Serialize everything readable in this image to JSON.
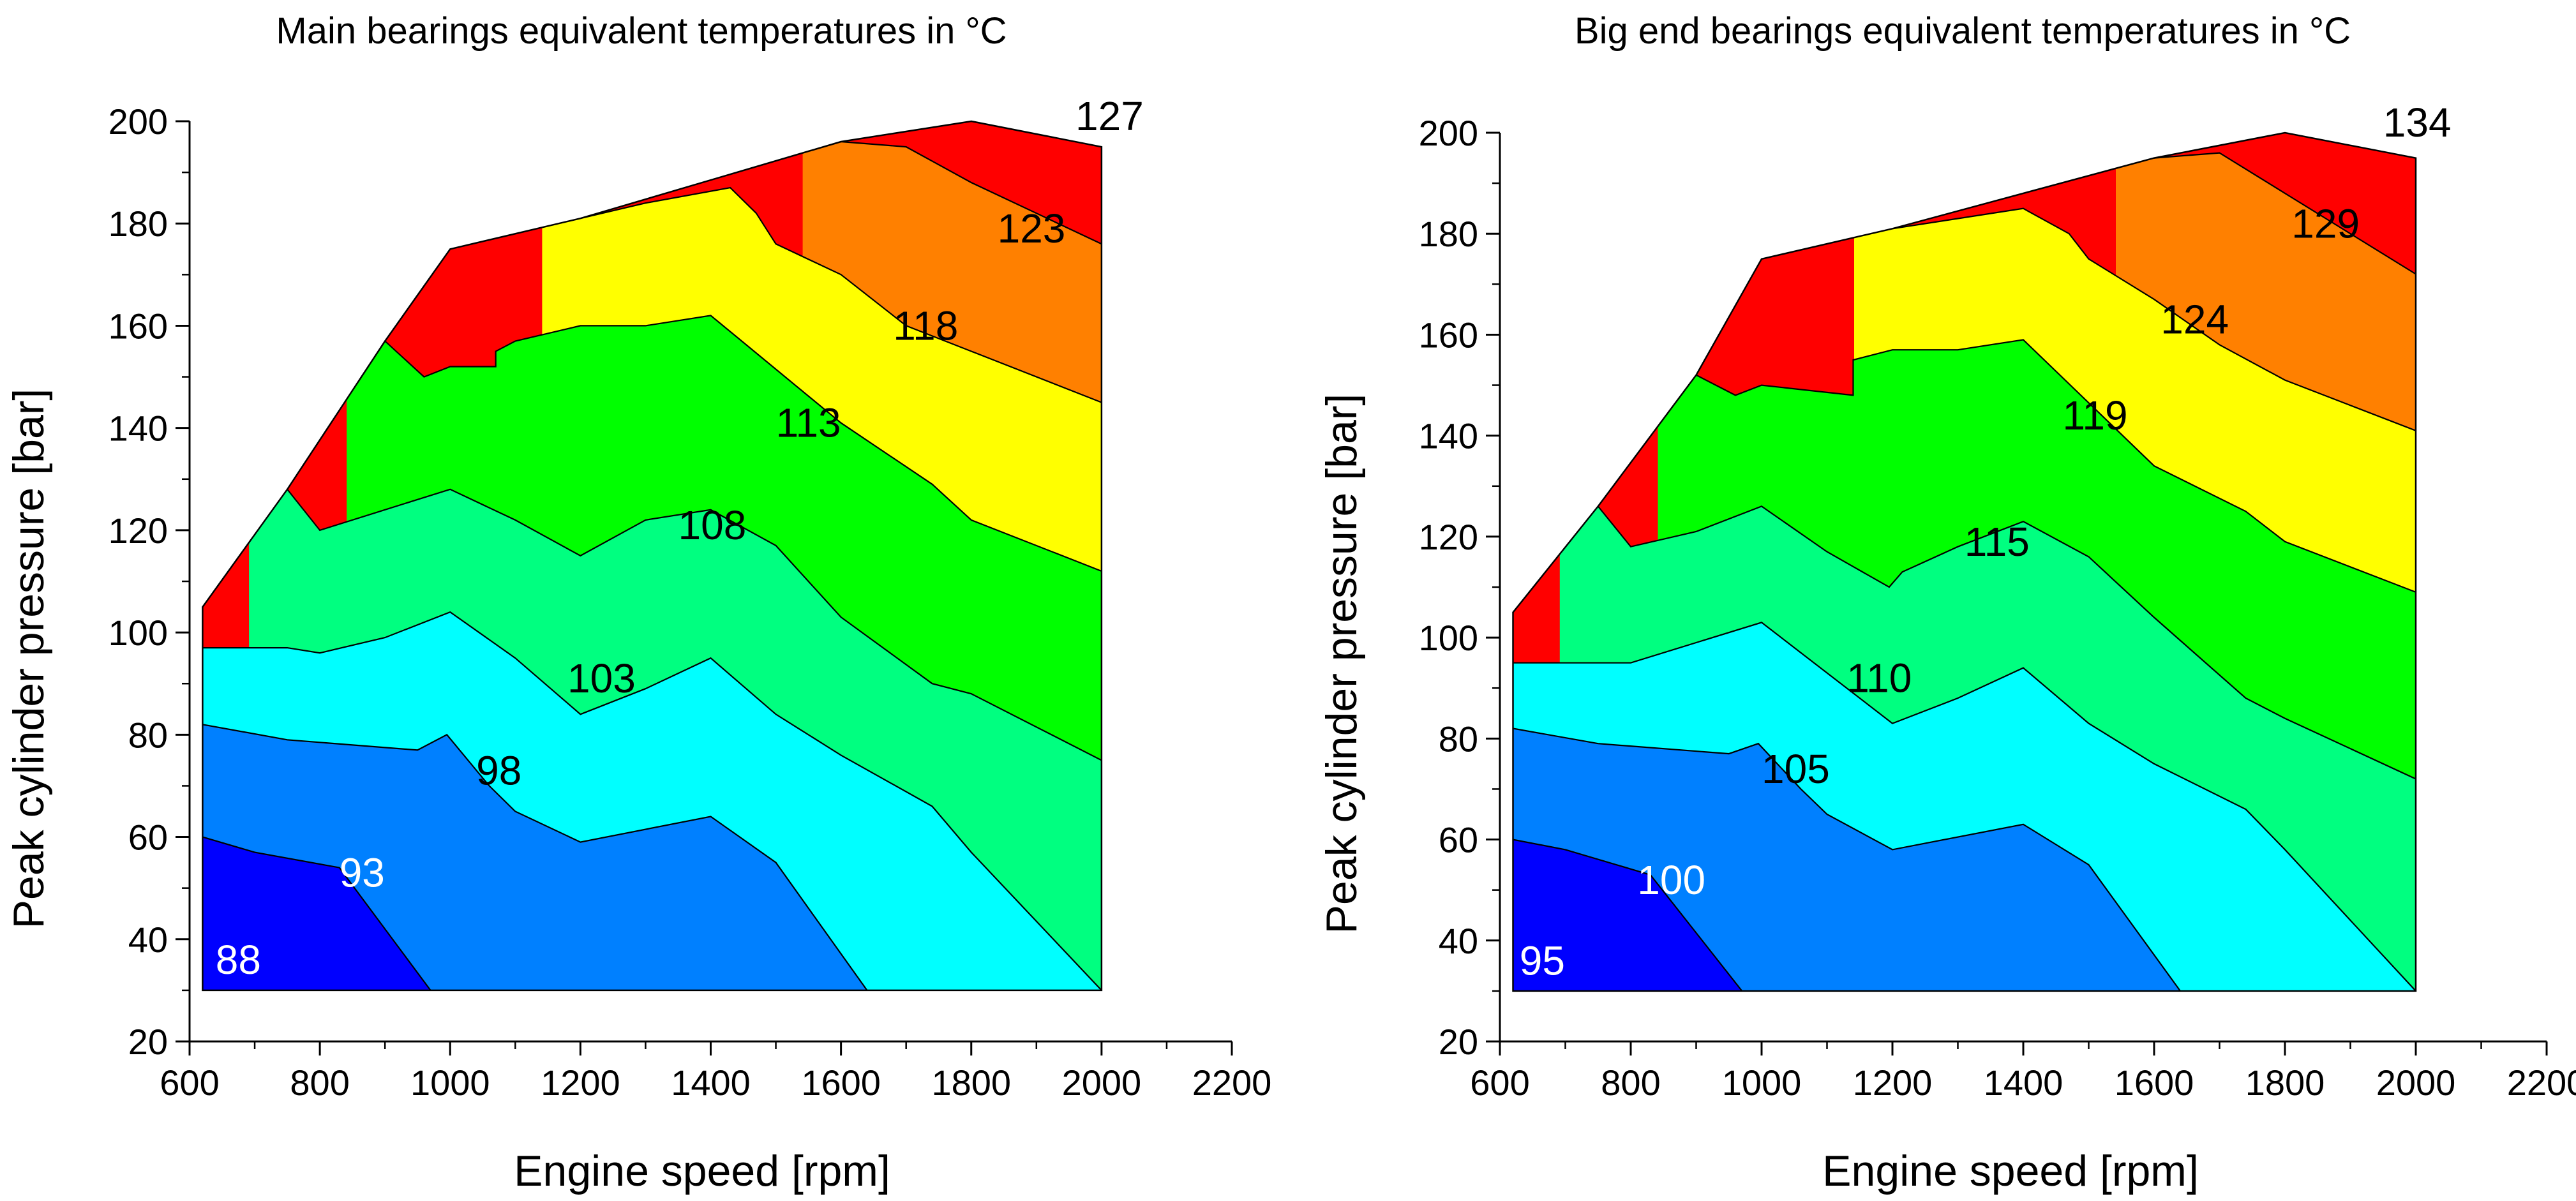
{
  "chart_data": [
    {
      "type": "contour",
      "title": "Main bearings equivalent temperatures in °C",
      "xlabel": "Engine speed [rpm]",
      "ylabel": "Peak cylinder pressure [bar]",
      "xlim": [
        600,
        2200
      ],
      "ylim": [
        20,
        200
      ],
      "xticks": [
        600,
        800,
        1000,
        1200,
        1400,
        1600,
        1800,
        2000,
        2200
      ],
      "yticks": [
        20,
        40,
        60,
        80,
        100,
        120,
        140,
        160,
        180,
        200
      ],
      "grid": false,
      "legend": "none",
      "colors": [
        "#0000ff",
        "#0080ff",
        "#00ffff",
        "#00ff80",
        "#00ff00",
        "#ffff00",
        "#ff8000",
        "#ff0000"
      ],
      "boundary": [
        [
          620,
          30
        ],
        [
          620,
          105
        ],
        [
          750,
          128
        ],
        [
          900,
          157
        ],
        [
          1000,
          175
        ],
        [
          1200,
          181
        ],
        [
          1600,
          196
        ],
        [
          1800,
          200
        ],
        [
          2000,
          195
        ],
        [
          2000,
          30
        ]
      ],
      "contour_lines": [
        {
          "level": 88,
          "points": [
            [
              620,
              60
            ],
            [
              700,
              57
            ],
            [
              830,
              54
            ],
            [
              970,
              30
            ]
          ]
        },
        {
          "level": 93,
          "points": [
            [
              620,
              82
            ],
            [
              750,
              79
            ],
            [
              950,
              77
            ],
            [
              995,
              80
            ],
            [
              1060,
              70
            ],
            [
              1100,
              65
            ],
            [
              1200,
              59
            ],
            [
              1400,
              64
            ],
            [
              1500,
              55
            ],
            [
              1640,
              30
            ]
          ]
        },
        {
          "level": 98,
          "points": [
            [
              620,
              97
            ],
            [
              750,
              97
            ],
            [
              800,
              96
            ],
            [
              900,
              99
            ],
            [
              1000,
              104
            ],
            [
              1100,
              95
            ],
            [
              1200,
              84
            ],
            [
              1300,
              89
            ],
            [
              1400,
              95
            ],
            [
              1500,
              84
            ],
            [
              1600,
              76
            ],
            [
              1740,
              66
            ],
            [
              1800,
              57
            ],
            [
              2000,
              30
            ]
          ]
        },
        {
          "level": 103,
          "points": [
            [
              750,
              128
            ],
            [
              800,
              120
            ],
            [
              900,
              124
            ],
            [
              1000,
              128
            ],
            [
              1100,
              122
            ],
            [
              1200,
              115
            ],
            [
              1300,
              122
            ],
            [
              1400,
              124
            ],
            [
              1500,
              117
            ],
            [
              1600,
              103
            ],
            [
              1740,
              90
            ],
            [
              1800,
              88
            ],
            [
              2000,
              75
            ]
          ]
        },
        {
          "level": 108,
          "points": [
            [
              900,
              157
            ],
            [
              960,
              150
            ],
            [
              1000,
              152
            ],
            [
              1070,
              152
            ],
            [
              1070,
              155
            ],
            [
              1100,
              157
            ],
            [
              1200,
              160
            ],
            [
              1300,
              160
            ],
            [
              1400,
              162
            ],
            [
              1600,
              141
            ],
            [
              1740,
              129
            ],
            [
              1800,
              122
            ],
            [
              2000,
              112
            ]
          ]
        },
        {
          "level": 113,
          "points": [
            [
              1200,
              181
            ],
            [
              1300,
              184
            ],
            [
              1430,
              187
            ],
            [
              1470,
              182
            ],
            [
              1500,
              176
            ],
            [
              1600,
              170
            ],
            [
              1700,
              160
            ],
            [
              1800,
              155
            ],
            [
              2000,
              145
            ]
          ]
        },
        {
          "level": 118,
          "points": [
            [
              1600,
              196
            ],
            [
              1700,
              195
            ],
            [
              1800,
              188
            ],
            [
              2000,
              176
            ]
          ]
        }
      ],
      "labels": [
        {
          "text": "88",
          "x": 640,
          "y": 36,
          "color": "white"
        },
        {
          "text": "93",
          "x": 830,
          "y": 53,
          "color": "white"
        },
        {
          "text": "98",
          "x": 1040,
          "y": 73,
          "color": "black"
        },
        {
          "text": "103",
          "x": 1180,
          "y": 91,
          "color": "black"
        },
        {
          "text": "108",
          "x": 1350,
          "y": 121,
          "color": "black"
        },
        {
          "text": "113",
          "x": 1500,
          "y": 141,
          "color": "black"
        },
        {
          "text": "118",
          "x": 1680,
          "y": 160,
          "color": "black"
        },
        {
          "text": "123",
          "x": 1840,
          "y": 179,
          "color": "black"
        },
        {
          "text": "127",
          "x": 1960,
          "y": 201,
          "color": "black"
        }
      ]
    },
    {
      "type": "contour",
      "title": "Big end bearings equivalent temperatures in °C",
      "xlabel": "Engine speed [rpm]",
      "ylabel": "Peak cylinder pressure [bar]",
      "xlim": [
        600,
        2200
      ],
      "ylim": [
        20,
        200
      ],
      "xticks": [
        600,
        800,
        1000,
        1200,
        1400,
        1600,
        1800,
        2000,
        2200
      ],
      "yticks": [
        20,
        40,
        60,
        80,
        100,
        120,
        140,
        160,
        180,
        200
      ],
      "grid": false,
      "legend": "none",
      "colors": [
        "#0000ff",
        "#0080ff",
        "#00ffff",
        "#00ff80",
        "#00ff00",
        "#ffff00",
        "#ff8000",
        "#ff0000"
      ],
      "boundary": [
        [
          620,
          30
        ],
        [
          620,
          105
        ],
        [
          750,
          126
        ],
        [
          900,
          152
        ],
        [
          1000,
          175
        ],
        [
          1200,
          181
        ],
        [
          1600,
          195
        ],
        [
          1800,
          200
        ],
        [
          2000,
          195
        ],
        [
          2000,
          30
        ]
      ],
      "contour_lines": [
        {
          "level": 95,
          "points": [
            [
              620,
              60
            ],
            [
              700,
              58
            ],
            [
              830,
              53
            ],
            [
              970,
              30
            ]
          ]
        },
        {
          "level": 100,
          "points": [
            [
              620,
              82
            ],
            [
              750,
              79
            ],
            [
              950,
              77
            ],
            [
              995,
              79
            ],
            [
              1060,
              70
            ],
            [
              1100,
              65
            ],
            [
              1200,
              58
            ],
            [
              1400,
              63
            ],
            [
              1500,
              55
            ],
            [
              1640,
              30
            ]
          ]
        },
        {
          "level": 105,
          "points": [
            [
              620,
              95
            ],
            [
              800,
              95
            ],
            [
              900,
              99
            ],
            [
              1000,
              103
            ],
            [
              1100,
              93
            ],
            [
              1200,
              83
            ],
            [
              1300,
              88
            ],
            [
              1400,
              94
            ],
            [
              1500,
              83
            ],
            [
              1600,
              75
            ],
            [
              1740,
              66
            ],
            [
              1800,
              58
            ],
            [
              2000,
              30
            ]
          ]
        },
        {
          "level": 110,
          "points": [
            [
              750,
              126
            ],
            [
              800,
              118
            ],
            [
              900,
              121
            ],
            [
              1000,
              126
            ],
            [
              1100,
              117
            ],
            [
              1195,
              110
            ],
            [
              1215,
              113
            ],
            [
              1300,
              118
            ],
            [
              1400,
              123
            ],
            [
              1500,
              116
            ],
            [
              1600,
              104
            ],
            [
              1740,
              88
            ],
            [
              1800,
              84
            ],
            [
              2000,
              72
            ]
          ]
        },
        {
          "level": 115,
          "points": [
            [
              900,
              152
            ],
            [
              960,
              148
            ],
            [
              1000,
              150
            ],
            [
              1140,
              148
            ],
            [
              1140,
              155
            ],
            [
              1200,
              157
            ],
            [
              1300,
              157
            ],
            [
              1400,
              159
            ],
            [
              1600,
              134
            ],
            [
              1740,
              125
            ],
            [
              1800,
              119
            ],
            [
              2000,
              109
            ]
          ]
        },
        {
          "level": 119,
          "points": [
            [
              1200,
              181
            ],
            [
              1300,
              183
            ],
            [
              1400,
              185
            ],
            [
              1470,
              180
            ],
            [
              1500,
              175
            ],
            [
              1600,
              167
            ],
            [
              1700,
              158
            ],
            [
              1800,
              151
            ],
            [
              2000,
              141
            ]
          ]
        },
        {
          "level": 124,
          "points": [
            [
              1600,
              195
            ],
            [
              1700,
              196
            ],
            [
              1800,
              188
            ],
            [
              2000,
              172
            ]
          ]
        }
      ],
      "labels": [
        {
          "text": "95",
          "x": 630,
          "y": 36,
          "color": "white"
        },
        {
          "text": "100",
          "x": 810,
          "y": 52,
          "color": "white"
        },
        {
          "text": "105",
          "x": 1000,
          "y": 74,
          "color": "black"
        },
        {
          "text": "110",
          "x": 1130,
          "y": 92,
          "color": "black"
        },
        {
          "text": "115",
          "x": 1310,
          "y": 119,
          "color": "black"
        },
        {
          "text": "119",
          "x": 1460,
          "y": 144,
          "color": "black"
        },
        {
          "text": "124",
          "x": 1610,
          "y": 163,
          "color": "black"
        },
        {
          "text": "129",
          "x": 1810,
          "y": 182,
          "color": "black"
        },
        {
          "text": "134",
          "x": 1950,
          "y": 202,
          "color": "black"
        }
      ]
    }
  ]
}
